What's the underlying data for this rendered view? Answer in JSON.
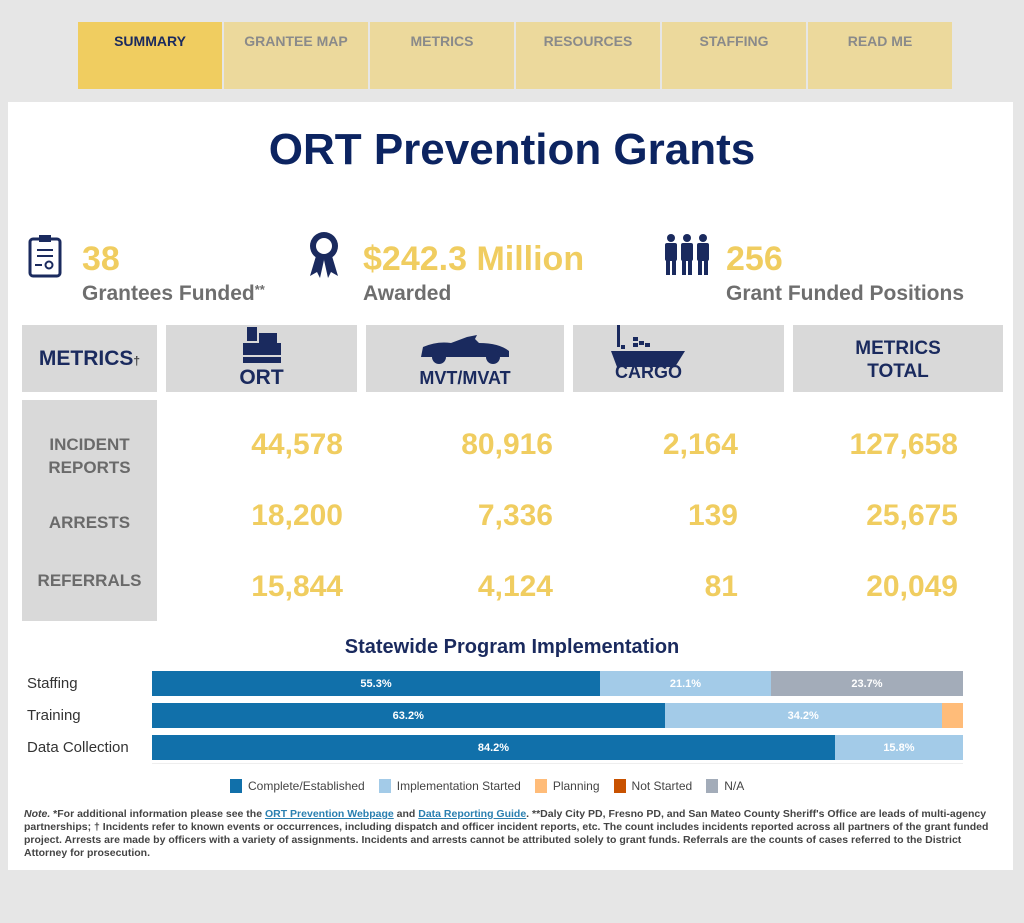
{
  "tabs": [
    {
      "label": "SUMMARY",
      "active": true
    },
    {
      "label": "GRANTEE MAP"
    },
    {
      "label": "METRICS"
    },
    {
      "label": "RESOURCES"
    },
    {
      "label": "STAFFING"
    },
    {
      "label": "READ ME"
    }
  ],
  "title": "ORT Prevention Grants",
  "kpis": [
    {
      "value": "38",
      "label": "Grantees Funded",
      "suffix": "**",
      "icon": "certificate-icon"
    },
    {
      "value": "$242.3 Million",
      "label": "Awarded",
      "icon": "award-ribbon-icon"
    },
    {
      "value": "256",
      "label": "Grant Funded Positions",
      "icon": "people-icon"
    }
  ],
  "metrics": {
    "header": "METRICS",
    "header_mark": "†",
    "columns": [
      "ORT",
      "MVT/MVAT",
      "CARGO"
    ],
    "total_header": [
      "METRICS",
      "TOTAL"
    ],
    "rows": [
      {
        "label": [
          "INCIDENT",
          "REPORTS"
        ],
        "values": [
          "44,578",
          "80,916",
          "2,164",
          "127,658"
        ]
      },
      {
        "label": [
          "ARRESTS"
        ],
        "values": [
          "18,200",
          "7,336",
          "139",
          "25,675"
        ]
      },
      {
        "label": [
          "REFERRALS"
        ],
        "values": [
          "15,844",
          "4,124",
          "81",
          "20,049"
        ]
      }
    ]
  },
  "colors": {
    "complete": "#1170aa",
    "started": "#a3cbe8",
    "planning": "#ffbc79",
    "not_started": "#c85200",
    "na": "#a3acb9",
    "gold": "#f0cd60",
    "navy": "#0c2461"
  },
  "chart_data": {
    "type": "bar",
    "stacked": true,
    "orientation": "horizontal",
    "title": "Statewide Program Implementation",
    "categories": [
      "Staffing",
      "Training",
      "Data Collection"
    ],
    "xlim": [
      0,
      100
    ],
    "series": [
      {
        "name": "Complete/Established",
        "values": [
          55.3,
          63.2,
          84.2
        ]
      },
      {
        "name": "Implementation Started",
        "values": [
          21.1,
          34.2,
          15.8
        ]
      },
      {
        "name": "Planning",
        "values": [
          0,
          2.6,
          0
        ]
      },
      {
        "name": "Not Started",
        "values": [
          0,
          0,
          0
        ]
      },
      {
        "name": "N/A",
        "values": [
          23.7,
          0,
          0
        ]
      }
    ],
    "labels": [
      [
        "55.3%",
        "21.1%",
        "",
        "",
        "23.7%"
      ],
      [
        "63.2%",
        "34.2%",
        "",
        "",
        ""
      ],
      [
        "84.2%",
        "15.8%",
        "",
        "",
        ""
      ]
    ],
    "legend_position": "bottom"
  },
  "note": {
    "lead": "Note.",
    "t1": " *For additional information please see the ",
    "link1": "ORT Prevention Webpage",
    "t2": " and ",
    "link2": "Data Reporting Guide",
    "t3": ". **Daly City PD, Fresno PD, and San Mateo County Sheriff's Office are leads of multi-agency partnerships; † Incidents refer to known events or occurrences, including dispatch and officer incident reports, etc. The count includes incidents reported across all partners of the grant funded project. Arrests are made by officers with a variety of assignments. Incidents and arrests cannot be attributed solely to grant funds. Referrals are the counts of cases referred to the District Attorney for prosecution."
  }
}
